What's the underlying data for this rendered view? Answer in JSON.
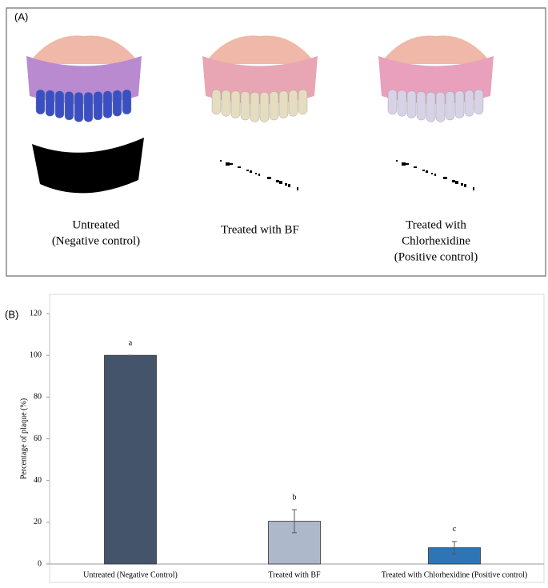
{
  "figure": {
    "panel_labels": [
      "(A)",
      "(B)"
    ],
    "captions": [
      [
        "Untreated",
        "(Negative control)"
      ],
      [
        "Treated with BF"
      ],
      [
        "Treated with",
        "Chlorhexidine",
        "(Positive control)"
      ]
    ]
  },
  "chart_data": {
    "type": "bar",
    "ylabel": "Percentage of plaque (%)",
    "categories": [
      "Untreated (Negative Control)",
      "Treated with BF",
      "Treated with Chlorhexidine (Positive control)"
    ],
    "values": [
      100,
      20.5,
      7.8
    ],
    "errors": [
      0,
      5.5,
      3
    ],
    "annotations": [
      "a",
      "b",
      "c"
    ],
    "colors": [
      "#44546a",
      "#adb9ca",
      "#2e75b6"
    ],
    "ylim": [
      0,
      120
    ],
    "yticks": [
      0,
      20,
      40,
      60,
      80,
      100,
      120
    ]
  }
}
